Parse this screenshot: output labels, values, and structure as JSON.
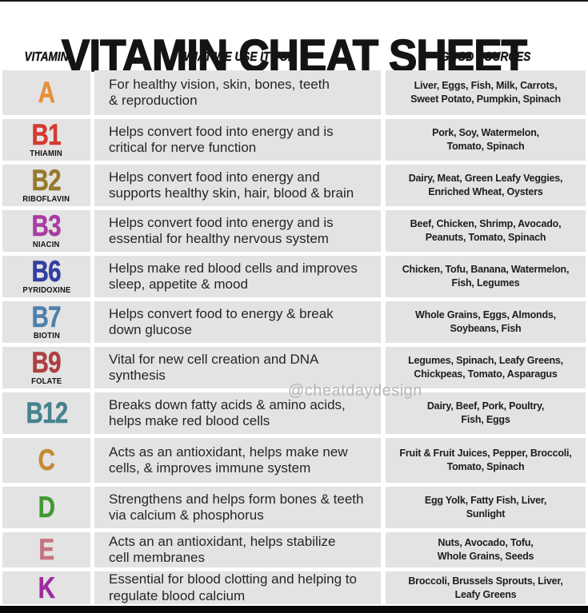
{
  "page": {
    "title": "VITAMIN CHEAT SHEET",
    "watermark": "@cheatdaydesign"
  },
  "colors": {
    "cell_background": "#e3e3e3",
    "page_background": "#ffffff",
    "heading_text": "#141414",
    "body_text": "#262626",
    "watermark_text": "#b7b7b7"
  },
  "table": {
    "headers": [
      {
        "id": "vitamin",
        "label": "VITAMIN"
      },
      {
        "id": "use",
        "label": "WHAT WE USE IT FOR"
      },
      {
        "id": "sources",
        "label": "GOOD SOURCES"
      }
    ],
    "rows": [
      {
        "letter": "A",
        "letter_color": "#e78f3c",
        "name": "",
        "use_lines": [
          "For healthy vision, skin, bones, teeth",
          "& reproduction"
        ],
        "sources_lines": [
          "Liver, Eggs, Fish, Milk, Carrots,",
          "Sweet Potato, Pumpkin, Spinach"
        ]
      },
      {
        "letter": "B1",
        "letter_color": "#d43b30",
        "name": "THIAMIN",
        "use_lines": [
          "Helps convert food into energy and is",
          "critical for nerve function"
        ],
        "sources_lines": [
          "Pork, Soy, Watermelon,",
          "Tomato, Spinach"
        ]
      },
      {
        "letter": "B2",
        "letter_color": "#97792c",
        "name": "RIBOFLAVIN",
        "use_lines": [
          "Helps convert food into energy and",
          "supports healthy skin, hair, blood & brain"
        ],
        "sources_lines": [
          "Dairy, Meat, Green Leafy Veggies,",
          "Enriched Wheat, Oysters"
        ]
      },
      {
        "letter": "B3",
        "letter_color": "#a93ba3",
        "name": "NIACIN",
        "use_lines": [
          "Helps convert food into energy and is",
          "essential for healthy nervous system"
        ],
        "sources_lines": [
          "Beef, Chicken, Shrimp, Avocado,",
          "Peanuts, Tomato, Spinach"
        ]
      },
      {
        "letter": "B6",
        "letter_color": "#323fa0",
        "name": "PYRIDOXINE",
        "use_lines": [
          "Helps make red blood cells and improves",
          "sleep, appetite & mood"
        ],
        "sources_lines": [
          "Chicken, Tofu, Banana, Watermelon,",
          "Fish, Legumes"
        ]
      },
      {
        "letter": "B7",
        "letter_color": "#4e81ab",
        "name": "BIOTIN",
        "use_lines": [
          "Helps convert food to energy & break",
          "down glucose"
        ],
        "sources_lines": [
          "Whole Grains, Eggs, Almonds,",
          "Soybeans, Fish"
        ]
      },
      {
        "letter": "B9",
        "letter_color": "#af4040",
        "name": "FOLATE",
        "use_lines": [
          "Vital for new cell creation and DNA",
          "synthesis"
        ],
        "sources_lines": [
          "Legumes, Spinach, Leafy Greens,",
          "Chickpeas, Tomato, Asparagus"
        ]
      },
      {
        "letter": "B12",
        "letter_color": "#47828f",
        "name": "",
        "use_lines": [
          "Breaks down fatty acids & amino acids,",
          "helps make red blood cells"
        ],
        "sources_lines": [
          "Dairy, Beef, Pork, Poultry,",
          "Fish, Eggs"
        ]
      },
      {
        "letter": "C",
        "letter_color": "#c38a33",
        "name": "",
        "use_lines": [
          "Acts as an antioxidant, helps make new",
          "cells, & improves immune system"
        ],
        "sources_lines": [
          "Fruit & Fruit Juices, Pepper, Broccoli,",
          "Tomato, Spinach"
        ]
      },
      {
        "letter": "D",
        "letter_color": "#42992f",
        "name": "",
        "use_lines": [
          "Strengthens and helps form bones & teeth",
          "via calcium & phosphorus"
        ],
        "sources_lines": [
          "Egg Yolk, Fatty Fish, Liver,",
          "Sunlight"
        ]
      },
      {
        "letter": "E",
        "letter_color": "#c97380",
        "name": "",
        "use_lines": [
          "Acts an an antioxidant, helps stabilize",
          "cell membranes"
        ],
        "sources_lines": [
          "Nuts, Avocado, Tofu,",
          "Whole Grains, Seeds"
        ]
      },
      {
        "letter": "K",
        "letter_color": "#9e2aa0",
        "name": "",
        "use_lines": [
          "Essential for blood clotting and helping to",
          "regulate blood calcium"
        ],
        "sources_lines": [
          "Broccoli, Brussels Sprouts, Liver,",
          "Leafy Greens"
        ]
      }
    ]
  },
  "chart_data": {
    "type": "table",
    "title": "VITAMIN CHEAT SHEET",
    "columns": [
      "VITAMIN",
      "WHAT WE USE IT FOR",
      "GOOD SOURCES"
    ],
    "rows": [
      [
        "A",
        "For healthy vision, skin, bones, teeth & reproduction",
        "Liver, Eggs, Fish, Milk, Carrots, Sweet Potato, Pumpkin, Spinach"
      ],
      [
        "B1 THIAMIN",
        "Helps convert food into energy and is critical for nerve function",
        "Pork, Soy, Watermelon, Tomato, Spinach"
      ],
      [
        "B2 RIBOFLAVIN",
        "Helps convert food into energy and supports healthy skin, hair, blood & brain",
        "Dairy, Meat, Green Leafy Veggies, Enriched Wheat, Oysters"
      ],
      [
        "B3 NIACIN",
        "Helps convert food into energy and is essential for healthy nervous system",
        "Beef, Chicken, Shrimp, Avocado, Peanuts, Tomato, Spinach"
      ],
      [
        "B6 PYRIDOXINE",
        "Helps make red blood cells and improves sleep, appetite & mood",
        "Chicken, Tofu, Banana, Watermelon, Fish, Legumes"
      ],
      [
        "B7 BIOTIN",
        "Helps convert food to energy & break down glucose",
        "Whole Grains, Eggs, Almonds, Soybeans, Fish"
      ],
      [
        "B9 FOLATE",
        "Vital for new cell creation and DNA synthesis",
        "Legumes, Spinach, Leafy Greens, Chickpeas, Tomato, Asparagus"
      ],
      [
        "B12",
        "Breaks down fatty acids & amino acids, helps make red blood cells",
        "Dairy, Beef, Pork, Poultry, Fish, Eggs"
      ],
      [
        "C",
        "Acts as an antioxidant, helps make new cells, & improves immune system",
        "Fruit & Fruit Juices, Pepper, Broccoli, Tomato, Spinach"
      ],
      [
        "D",
        "Strengthens and helps form bones & teeth via calcium & phosphorus",
        "Egg Yolk, Fatty Fish, Liver, Sunlight"
      ],
      [
        "E",
        "Acts an an antioxidant, helps stabilize cell membranes",
        "Nuts, Avocado, Tofu, Whole Grains, Seeds"
      ],
      [
        "K",
        "Essential for blood clotting and helping to regulate blood calcium",
        "Broccoli, Brussels Sprouts, Liver, Leafy Greens"
      ]
    ]
  }
}
